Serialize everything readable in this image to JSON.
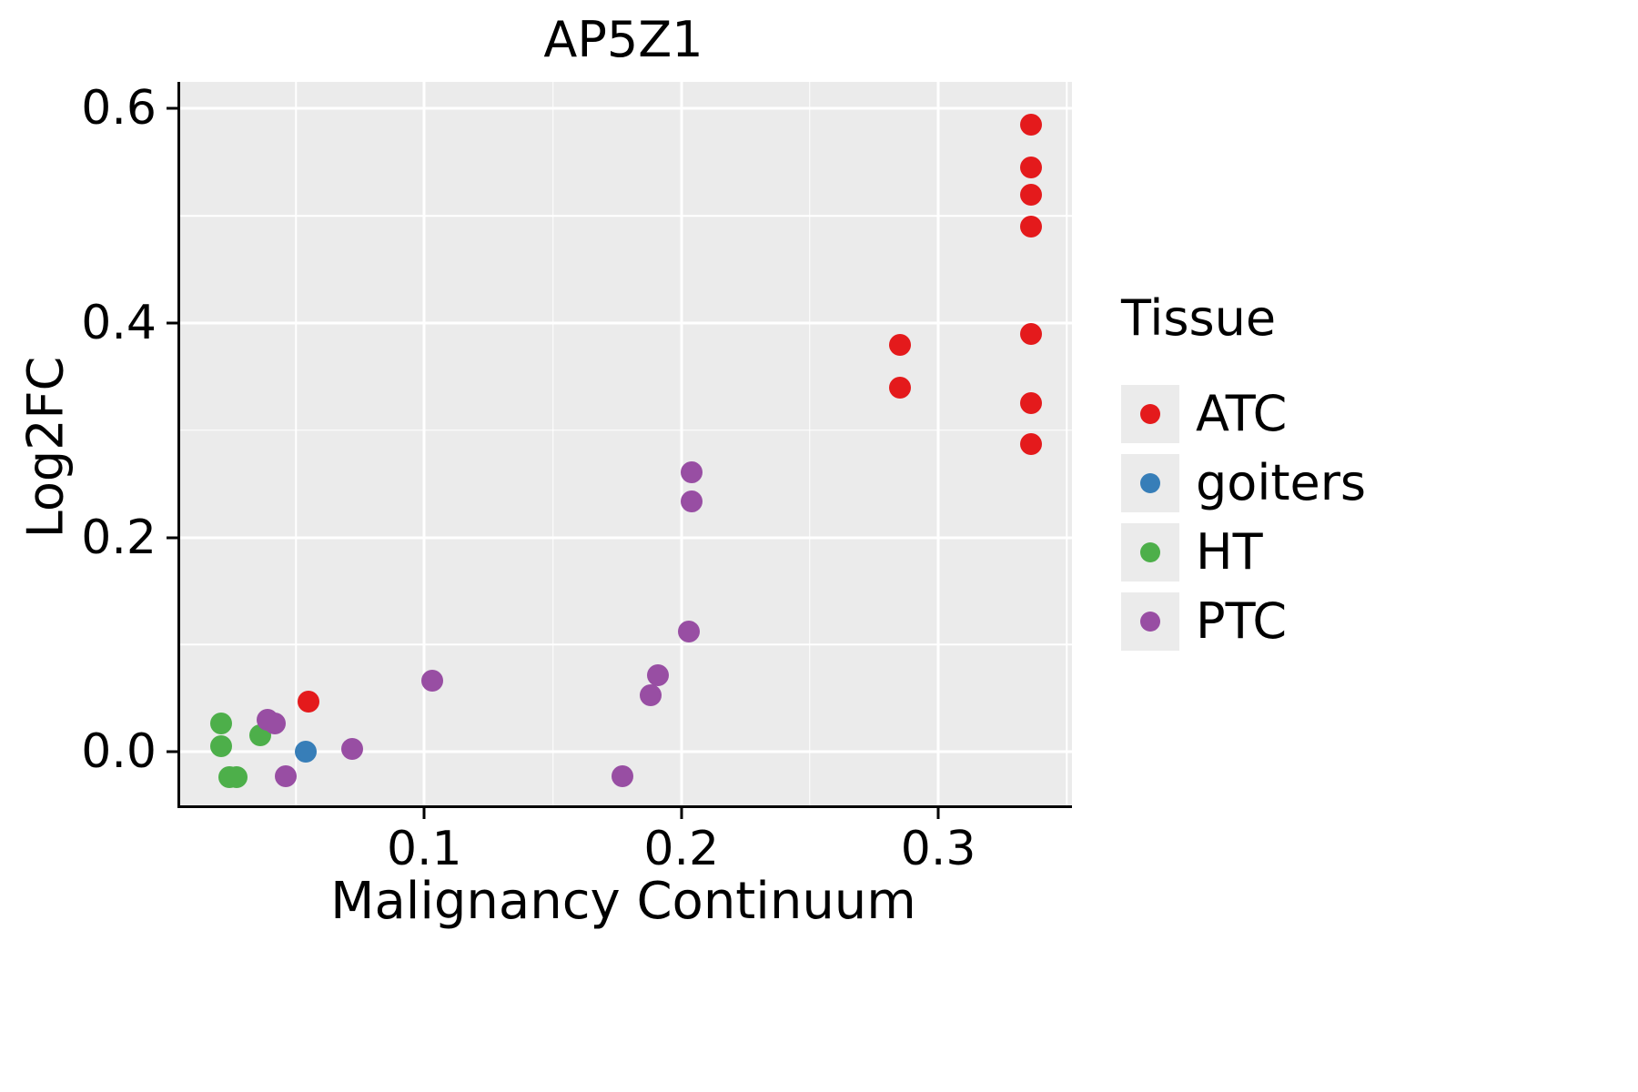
{
  "chart_data": {
    "type": "scatter",
    "title": "AP5Z1",
    "xlabel": "Malignancy Continuum",
    "ylabel": "Log2FC",
    "legend_title": "Tissue",
    "legend_position": "right",
    "grid": true,
    "panel_bg": "#EBEBEB",
    "grid_color": "#FFFFFF",
    "xlim": [
      0.005,
      0.352
    ],
    "ylim": [
      -0.05,
      0.625
    ],
    "x_ticks": [
      0.1,
      0.2,
      0.3
    ],
    "x_tick_labels": [
      "0.1",
      "0.2",
      "0.3"
    ],
    "y_ticks": [
      0.0,
      0.2,
      0.4,
      0.6
    ],
    "y_tick_labels": [
      "0.0",
      "0.2",
      "0.4",
      "0.6"
    ],
    "x_minor_ticks": [
      0.05,
      0.15,
      0.25,
      0.35
    ],
    "y_minor_ticks": [
      0.1,
      0.3,
      0.5
    ],
    "series": [
      {
        "name": "ATC",
        "color": "#E41A1C",
        "points": [
          [
            0.336,
            0.585
          ],
          [
            0.336,
            0.545
          ],
          [
            0.336,
            0.52
          ],
          [
            0.336,
            0.49
          ],
          [
            0.336,
            0.39
          ],
          [
            0.336,
            0.325
          ],
          [
            0.336,
            0.287
          ],
          [
            0.285,
            0.38
          ],
          [
            0.285,
            0.34
          ],
          [
            0.055,
            0.047
          ]
        ]
      },
      {
        "name": "goiters",
        "color": "#377EB8",
        "points": [
          [
            0.054,
            0.0
          ]
        ]
      },
      {
        "name": "HT",
        "color": "#4DAF4A",
        "points": [
          [
            0.021,
            0.026
          ],
          [
            0.021,
            0.005
          ],
          [
            0.024,
            -0.024
          ],
          [
            0.027,
            -0.024
          ],
          [
            0.036,
            0.015
          ]
        ]
      },
      {
        "name": "PTC",
        "color": "#984EA3",
        "points": [
          [
            0.039,
            0.03
          ],
          [
            0.042,
            0.026
          ],
          [
            0.046,
            -0.023
          ],
          [
            0.072,
            0.003
          ],
          [
            0.103,
            0.066
          ],
          [
            0.177,
            -0.023
          ],
          [
            0.188,
            0.053
          ],
          [
            0.191,
            0.071
          ],
          [
            0.203,
            0.112
          ],
          [
            0.204,
            0.261
          ],
          [
            0.204,
            0.234
          ]
        ]
      }
    ]
  }
}
